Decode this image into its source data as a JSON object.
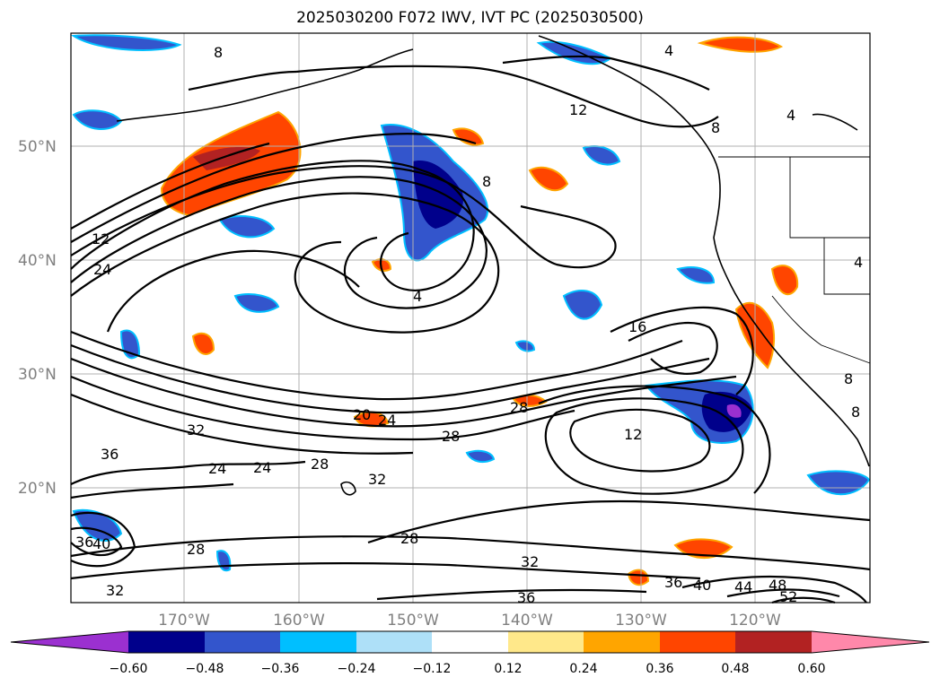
{
  "title": "2025030200 F072 IWV, IVT PC (2025030500)",
  "axes": {
    "lon_ticks": [
      "170°W",
      "160°W",
      "150°W",
      "140°W",
      "130°W",
      "120°W"
    ],
    "lat_ticks": [
      "50°N",
      "40°N",
      "30°N",
      "20°N"
    ]
  },
  "colorbar": {
    "ticks": [
      "−0.60",
      "−0.48",
      "−0.36",
      "−0.24",
      "−0.12",
      "0.12",
      "0.24",
      "0.36",
      "0.48",
      "0.60"
    ],
    "colors": [
      "#9b30d0",
      "#00008b",
      "#3355cc",
      "#00bfff",
      "#aee0f8",
      "#ffffff",
      "#ffe88a",
      "#ffa500",
      "#ff4500",
      "#b22222",
      "#ff88aa"
    ]
  },
  "contour_labels": [
    "8",
    "4",
    "12",
    "8",
    "4",
    "8",
    "12",
    "24",
    "4",
    "16",
    "12",
    "20",
    "24",
    "28",
    "32",
    "36",
    "24",
    "24",
    "28",
    "32",
    "28",
    "28",
    "32",
    "36",
    "32",
    "40",
    "36",
    "40",
    "44",
    "48",
    "52",
    "28",
    "8",
    "8",
    "4",
    "36"
  ],
  "shading": {
    "positive_color": "#ff4500",
    "negative_color": "#3355cc"
  }
}
